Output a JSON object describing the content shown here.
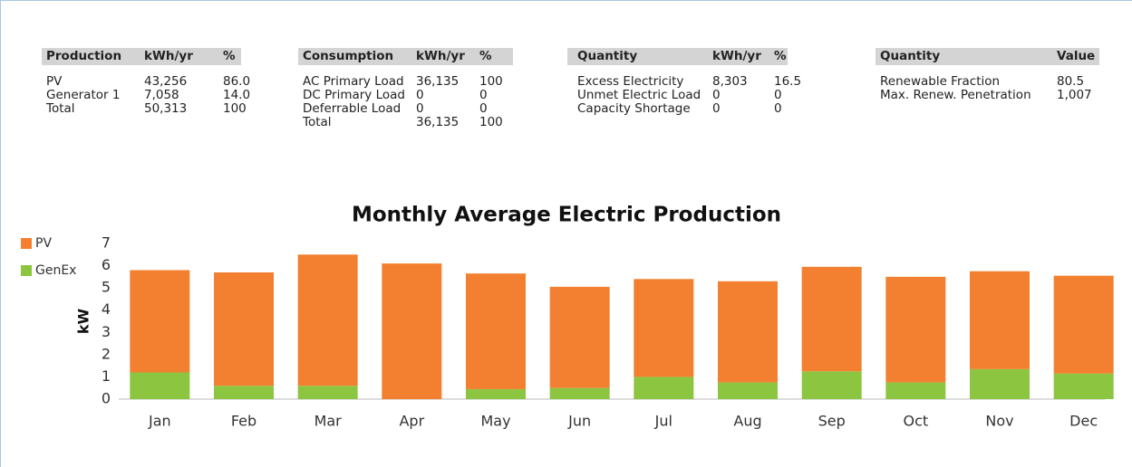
{
  "tables": [
    {
      "columns": [
        "Production",
        "kWh/yr",
        "%"
      ],
      "rows": [
        [
          "PV",
          "43,256",
          "86.0"
        ],
        [
          "Generator 1",
          "7,058",
          "14.0"
        ],
        [
          "Total",
          "50,313",
          "100"
        ]
      ]
    },
    {
      "columns": [
        "Consumption",
        "kWh/yr",
        "%"
      ],
      "rows": [
        [
          "AC Primary Load",
          "36,135",
          "100"
        ],
        [
          "DC Primary Load",
          "0",
          "0"
        ],
        [
          "Deferrable Load",
          "0",
          "0"
        ],
        [
          "Total",
          "36,135",
          "100"
        ]
      ]
    },
    {
      "columns": [
        "Quantity",
        "kWh/yr",
        "%"
      ],
      "rows": [
        [
          "Excess Electricity",
          "8,303",
          "16.5"
        ],
        [
          "Unmet Electric Load",
          "0",
          "0"
        ],
        [
          "Capacity Shortage",
          "0",
          "0"
        ]
      ]
    },
    {
      "columns": [
        "Quantity",
        "Value"
      ],
      "rows": [
        [
          "Renewable Fraction",
          "80.5"
        ],
        [
          "Max. Renew. Penetration",
          "1,007"
        ]
      ]
    }
  ],
  "chart_data": {
    "type": "stacked_bar",
    "title": "Monthly Average Electric Production",
    "y_label": "kW",
    "categories": [
      "Jan",
      "Feb",
      "Mar",
      "Apr",
      "May",
      "Jun",
      "Jul",
      "Aug",
      "Sep",
      "Oct",
      "Nov",
      "Dec"
    ],
    "series": [
      {
        "name": "PV",
        "color": "#f28030",
        "values": [
          4.6,
          5.1,
          5.9,
          6.1,
          5.2,
          4.55,
          4.4,
          4.55,
          4.7,
          4.75,
          4.4,
          4.4
        ]
      },
      {
        "name": "GenEx",
        "color": "#8cc540",
        "values": [
          1.2,
          0.6,
          0.6,
          0,
          0.45,
          0.5,
          1.0,
          0.75,
          1.25,
          0.75,
          1.35,
          1.15
        ]
      }
    ],
    "ylim": [
      0,
      7
    ],
    "yticks": [
      0,
      1,
      2,
      3,
      4,
      5,
      6,
      7
    ],
    "grid": false,
    "legend": "left"
  }
}
